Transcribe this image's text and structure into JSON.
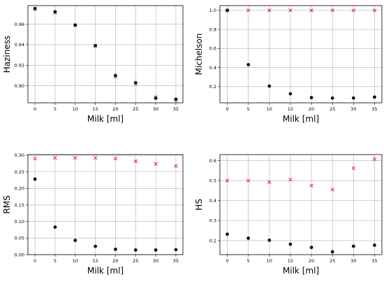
{
  "chart_data": [
    {
      "type": "scatter",
      "xlabel": "Milk [ml]",
      "ylabel": "Haziness",
      "x": [
        0,
        5,
        10,
        15,
        20,
        25,
        30,
        35
      ],
      "xlim": [
        -1.75,
        36.75
      ],
      "xticks": [
        "0",
        "5",
        "10",
        "15",
        "20",
        "25",
        "30",
        "35"
      ],
      "ylim": [
        0.8835,
        0.978
      ],
      "yticks": [
        0.9,
        0.92,
        0.94,
        0.96
      ],
      "ytick_labels": [
        "0.90",
        "0.92",
        "0.94",
        "0.96"
      ],
      "grid": true,
      "series": [
        {
          "marker": "x",
          "color": "#e31a1c",
          "values": [
            0.975,
            0.971,
            0.959,
            0.939,
            0.909,
            0.902,
            0.889,
            0.886
          ]
        },
        {
          "marker": "o",
          "color": "#111111",
          "values": [
            0.975,
            0.972,
            0.959,
            0.939,
            0.91,
            0.903,
            0.888,
            0.887
          ]
        }
      ]
    },
    {
      "type": "scatter",
      "xlabel": "Milk [ml]",
      "ylabel": "Michelson",
      "x": [
        0,
        5,
        10,
        15,
        20,
        25,
        30,
        35
      ],
      "xlim": [
        -1.75,
        36.75
      ],
      "xticks": [
        "0",
        "5",
        "10",
        "15",
        "20",
        "25",
        "30",
        "35"
      ],
      "ylim": [
        0.03,
        1.05
      ],
      "yticks": [
        0.2,
        0.4,
        0.6,
        0.8,
        1.0
      ],
      "ytick_labels": [
        "0.2",
        "0.4",
        "0.6",
        "0.8",
        "1.0"
      ],
      "grid": true,
      "series": [
        {
          "marker": "x",
          "color": "#e31a1c",
          "values": [
            1.0,
            1.0,
            1.0,
            1.0,
            1.0,
            1.0,
            1.0,
            1.0
          ]
        },
        {
          "marker": "o",
          "color": "#111111",
          "values": [
            1.0,
            0.43,
            0.205,
            0.125,
            0.085,
            0.08,
            0.08,
            0.09
          ]
        }
      ]
    },
    {
      "type": "scatter",
      "xlabel": "Milk [ml]",
      "ylabel": "RMS",
      "x": [
        0,
        5,
        10,
        15,
        20,
        25,
        30,
        35
      ],
      "xlim": [
        -1.75,
        36.75
      ],
      "xticks": [
        "0",
        "5",
        "10",
        "15",
        "20",
        "25",
        "30",
        "35"
      ],
      "ylim": [
        0.0,
        0.302
      ],
      "yticks": [
        0.0,
        0.05,
        0.1,
        0.15,
        0.2,
        0.25,
        0.3
      ],
      "ytick_labels": [
        "0.00",
        "0.05",
        "0.10",
        "0.15",
        "0.20",
        "0.25",
        "0.30"
      ],
      "grid": true,
      "series": [
        {
          "marker": "x",
          "color": "#e31a1c",
          "values": [
            0.29,
            0.292,
            0.292,
            0.292,
            0.29,
            0.282,
            0.274,
            0.268
          ]
        },
        {
          "marker": "o",
          "color": "#111111",
          "values": [
            0.228,
            0.083,
            0.043,
            0.025,
            0.016,
            0.014,
            0.014,
            0.015
          ]
        }
      ]
    },
    {
      "type": "scatter",
      "xlabel": "Milk [ml]",
      "ylabel": "HS",
      "x": [
        0,
        5,
        10,
        15,
        20,
        25,
        30,
        35
      ],
      "xlim": [
        -1.75,
        36.75
      ],
      "xticks": [
        "0",
        "5",
        "10",
        "15",
        "20",
        "25",
        "30",
        "35"
      ],
      "ylim": [
        0.13,
        0.63
      ],
      "yticks": [
        0.2,
        0.3,
        0.4,
        0.5,
        0.6
      ],
      "ytick_labels": [
        "0.2",
        "0.3",
        "0.4",
        "0.5",
        "0.6"
      ],
      "grid": true,
      "series": [
        {
          "marker": "x",
          "color": "#e31a1c",
          "values": [
            0.5,
            0.5,
            0.492,
            0.505,
            0.475,
            0.455,
            0.562,
            0.607
          ]
        },
        {
          "marker": "o",
          "color": "#111111",
          "values": [
            0.232,
            0.212,
            0.202,
            0.182,
            0.166,
            0.144,
            0.172,
            0.177
          ]
        }
      ]
    }
  ]
}
